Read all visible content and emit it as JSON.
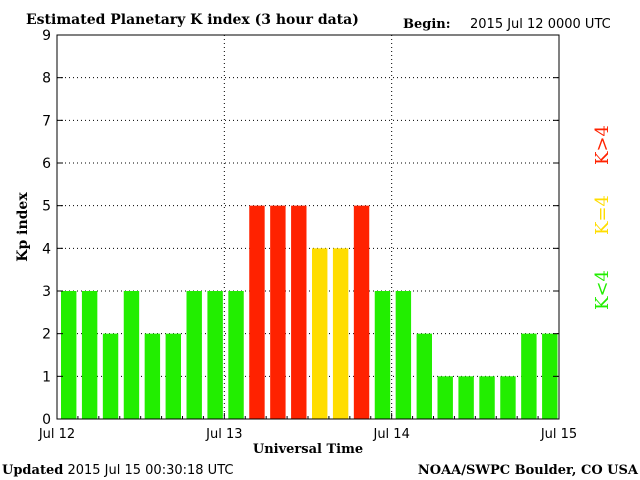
{
  "header": {
    "title": "Estimated Planetary K index (3 hour data)",
    "begin_label": "Begin:",
    "begin_value": "2015 Jul 12 0000 UTC"
  },
  "footer": {
    "updated_label": "Updated",
    "updated_value": "2015 Jul 15 00:30:18 UTC",
    "credit": "NOAA/SWPC Boulder, CO USA"
  },
  "legend": [
    {
      "label": "K>4",
      "color": "#ff2200"
    },
    {
      "label": "K=4",
      "color": "#ffdd00"
    },
    {
      "label": "K<4",
      "color": "#22ee00"
    }
  ],
  "chart_data": {
    "type": "bar",
    "xlabel": "Universal Time",
    "ylabel": "Kp index",
    "ylim": [
      0,
      9
    ],
    "yticks": [
      0,
      1,
      2,
      3,
      4,
      5,
      6,
      7,
      8,
      9
    ],
    "xticks": [
      "Jul 12",
      "Jul 13",
      "Jul 14",
      "Jul 15"
    ],
    "grid": true,
    "values": [
      3,
      3,
      2,
      3,
      2,
      2,
      3,
      3,
      3,
      5,
      5,
      5,
      4,
      4,
      5,
      3,
      3,
      2,
      1,
      1,
      1,
      1,
      2,
      2
    ],
    "colors": {
      "low": "#22ee00",
      "mid": "#ffdd00",
      "high": "#ff2200"
    }
  }
}
